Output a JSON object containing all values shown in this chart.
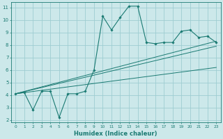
{
  "xlabel": "Humidex (Indice chaleur)",
  "bg_color": "#cce8ea",
  "grid_color": "#9ecdd1",
  "line_color": "#1a7a72",
  "xlim": [
    -0.5,
    23.5
  ],
  "ylim": [
    1.8,
    11.4
  ],
  "xticks": [
    0,
    1,
    2,
    3,
    4,
    5,
    6,
    7,
    8,
    9,
    10,
    11,
    12,
    13,
    14,
    15,
    16,
    17,
    18,
    19,
    20,
    21,
    22,
    23
  ],
  "yticks": [
    2,
    3,
    4,
    5,
    6,
    7,
    8,
    9,
    10,
    11
  ],
  "main_x": [
    0,
    1,
    2,
    3,
    4,
    5,
    6,
    7,
    8,
    9,
    10,
    11,
    12,
    13,
    14,
    15,
    16,
    17,
    18,
    19,
    20,
    21,
    22,
    23
  ],
  "main_y": [
    4.1,
    4.2,
    2.8,
    4.3,
    4.3,
    2.2,
    4.1,
    4.1,
    4.3,
    6.0,
    10.3,
    9.2,
    10.2,
    11.1,
    11.1,
    8.2,
    8.1,
    8.2,
    8.2,
    9.1,
    9.2,
    8.6,
    8.7,
    8.2
  ],
  "line1_x": [
    0,
    23
  ],
  "line1_y": [
    4.1,
    8.3
  ],
  "line2_x": [
    0,
    23
  ],
  "line2_y": [
    4.1,
    7.9
  ],
  "line3_x": [
    0,
    23
  ],
  "line3_y": [
    4.1,
    6.2
  ],
  "xtick_fontsize": 4.2,
  "ytick_fontsize": 5.0,
  "xlabel_fontsize": 6.0
}
